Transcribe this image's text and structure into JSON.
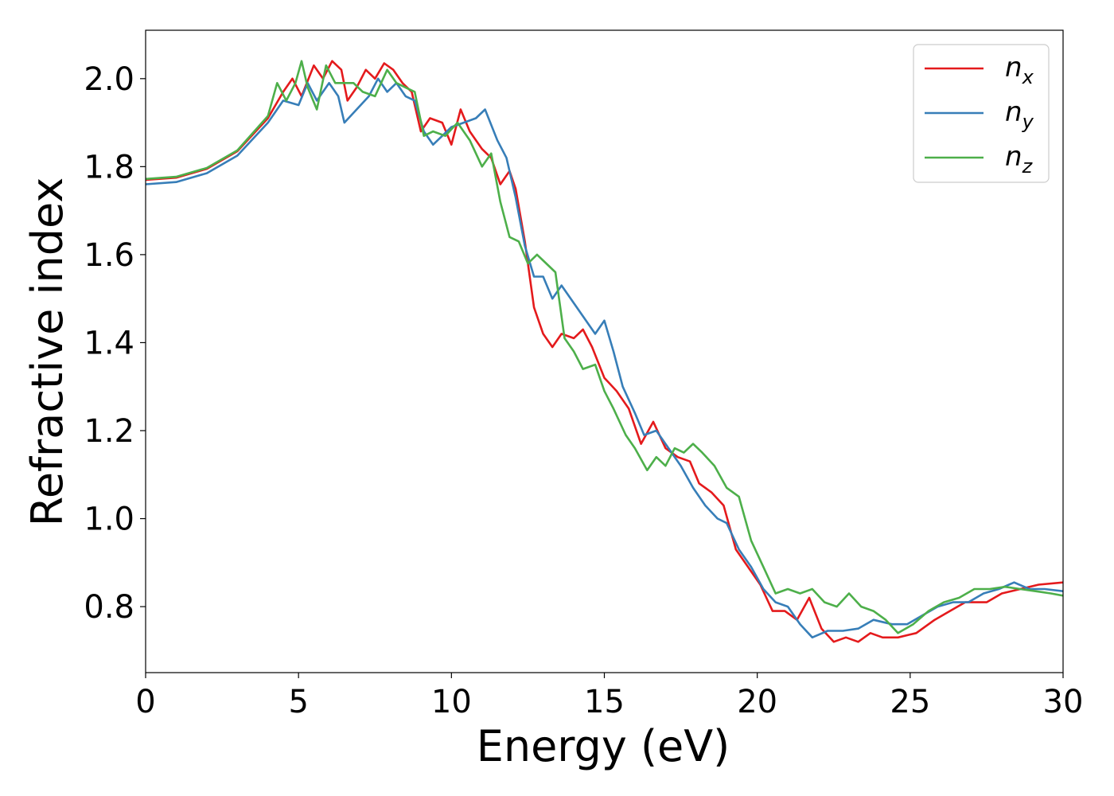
{
  "chart_data": {
    "type": "line",
    "title": "",
    "xlabel": "Energy (eV)",
    "ylabel": "Refractive index",
    "xlim": [
      0,
      30
    ],
    "ylim": [
      0.65,
      2.11
    ],
    "xticks": [
      0,
      5,
      10,
      15,
      20,
      25,
      30
    ],
    "yticks": [
      0.8,
      1.0,
      1.2,
      1.4,
      1.6,
      1.8,
      2.0
    ],
    "xtick_labels": [
      "0",
      "5",
      "10",
      "15",
      "20",
      "25",
      "30"
    ],
    "ytick_labels": [
      "0.8",
      "1.0",
      "1.2",
      "1.4",
      "1.6",
      "1.8",
      "2.0"
    ],
    "grid": false,
    "legend_position": "top-right",
    "series": [
      {
        "name": "n_x",
        "label_main": "n",
        "label_sub": "x",
        "color": "#e41a1c",
        "points": [
          [
            0,
            1.77
          ],
          [
            1,
            1.775
          ],
          [
            2,
            1.795
          ],
          [
            3,
            1.835
          ],
          [
            4,
            1.91
          ],
          [
            4.5,
            1.97
          ],
          [
            4.8,
            2.0
          ],
          [
            5.1,
            1.96
          ],
          [
            5.5,
            2.03
          ],
          [
            5.8,
            2.0
          ],
          [
            6.1,
            2.04
          ],
          [
            6.4,
            2.02
          ],
          [
            6.6,
            1.95
          ],
          [
            6.9,
            1.98
          ],
          [
            7.2,
            2.02
          ],
          [
            7.5,
            2.0
          ],
          [
            7.8,
            2.035
          ],
          [
            8.1,
            2.02
          ],
          [
            8.4,
            1.99
          ],
          [
            8.7,
            1.97
          ],
          [
            9.0,
            1.88
          ],
          [
            9.3,
            1.91
          ],
          [
            9.7,
            1.9
          ],
          [
            10.0,
            1.85
          ],
          [
            10.3,
            1.93
          ],
          [
            10.6,
            1.88
          ],
          [
            11.0,
            1.84
          ],
          [
            11.3,
            1.82
          ],
          [
            11.6,
            1.76
          ],
          [
            11.9,
            1.79
          ],
          [
            12.1,
            1.75
          ],
          [
            12.4,
            1.63
          ],
          [
            12.7,
            1.48
          ],
          [
            13.0,
            1.42
          ],
          [
            13.3,
            1.39
          ],
          [
            13.6,
            1.42
          ],
          [
            14.0,
            1.41
          ],
          [
            14.3,
            1.43
          ],
          [
            14.6,
            1.39
          ],
          [
            15.0,
            1.32
          ],
          [
            15.4,
            1.29
          ],
          [
            15.8,
            1.25
          ],
          [
            16.2,
            1.17
          ],
          [
            16.6,
            1.22
          ],
          [
            17.0,
            1.16
          ],
          [
            17.4,
            1.14
          ],
          [
            17.8,
            1.13
          ],
          [
            18.1,
            1.08
          ],
          [
            18.5,
            1.06
          ],
          [
            18.9,
            1.03
          ],
          [
            19.3,
            0.93
          ],
          [
            19.7,
            0.89
          ],
          [
            20.1,
            0.85
          ],
          [
            20.5,
            0.79
          ],
          [
            20.9,
            0.79
          ],
          [
            21.3,
            0.77
          ],
          [
            21.7,
            0.82
          ],
          [
            22.1,
            0.75
          ],
          [
            22.5,
            0.72
          ],
          [
            22.9,
            0.73
          ],
          [
            23.3,
            0.72
          ],
          [
            23.7,
            0.74
          ],
          [
            24.1,
            0.73
          ],
          [
            24.6,
            0.73
          ],
          [
            25.2,
            0.74
          ],
          [
            25.8,
            0.77
          ],
          [
            26.3,
            0.79
          ],
          [
            26.8,
            0.81
          ],
          [
            27.5,
            0.81
          ],
          [
            28.0,
            0.83
          ],
          [
            28.6,
            0.84
          ],
          [
            29.2,
            0.85
          ],
          [
            30.0,
            0.855
          ]
        ]
      },
      {
        "name": "n_y",
        "label_main": "n",
        "label_sub": "y",
        "color": "#377eb8",
        "points": [
          [
            0,
            1.76
          ],
          [
            1,
            1.765
          ],
          [
            2,
            1.785
          ],
          [
            3,
            1.825
          ],
          [
            4,
            1.9
          ],
          [
            4.5,
            1.95
          ],
          [
            5.0,
            1.94
          ],
          [
            5.3,
            1.99
          ],
          [
            5.6,
            1.95
          ],
          [
            6.0,
            1.99
          ],
          [
            6.3,
            1.96
          ],
          [
            6.5,
            1.9
          ],
          [
            6.9,
            1.93
          ],
          [
            7.3,
            1.96
          ],
          [
            7.6,
            2.0
          ],
          [
            7.9,
            1.97
          ],
          [
            8.2,
            1.99
          ],
          [
            8.5,
            1.96
          ],
          [
            8.8,
            1.95
          ],
          [
            9.1,
            1.88
          ],
          [
            9.4,
            1.85
          ],
          [
            9.7,
            1.87
          ],
          [
            10.0,
            1.89
          ],
          [
            10.4,
            1.9
          ],
          [
            10.8,
            1.91
          ],
          [
            11.1,
            1.93
          ],
          [
            11.5,
            1.86
          ],
          [
            11.8,
            1.82
          ],
          [
            12.1,
            1.73
          ],
          [
            12.4,
            1.62
          ],
          [
            12.7,
            1.55
          ],
          [
            13.0,
            1.55
          ],
          [
            13.3,
            1.5
          ],
          [
            13.6,
            1.53
          ],
          [
            14.0,
            1.49
          ],
          [
            14.3,
            1.46
          ],
          [
            14.7,
            1.42
          ],
          [
            15.0,
            1.45
          ],
          [
            15.3,
            1.38
          ],
          [
            15.6,
            1.3
          ],
          [
            16.0,
            1.24
          ],
          [
            16.3,
            1.19
          ],
          [
            16.7,
            1.2
          ],
          [
            17.1,
            1.16
          ],
          [
            17.5,
            1.12
          ],
          [
            17.9,
            1.07
          ],
          [
            18.3,
            1.03
          ],
          [
            18.7,
            1.0
          ],
          [
            19.0,
            0.99
          ],
          [
            19.4,
            0.93
          ],
          [
            19.8,
            0.89
          ],
          [
            20.2,
            0.84
          ],
          [
            20.6,
            0.81
          ],
          [
            21.0,
            0.8
          ],
          [
            21.4,
            0.76
          ],
          [
            21.8,
            0.73
          ],
          [
            22.3,
            0.745
          ],
          [
            22.8,
            0.745
          ],
          [
            23.3,
            0.75
          ],
          [
            23.8,
            0.77
          ],
          [
            24.4,
            0.76
          ],
          [
            24.9,
            0.76
          ],
          [
            25.4,
            0.78
          ],
          [
            25.9,
            0.8
          ],
          [
            26.4,
            0.81
          ],
          [
            26.9,
            0.81
          ],
          [
            27.4,
            0.83
          ],
          [
            27.9,
            0.84
          ],
          [
            28.4,
            0.855
          ],
          [
            28.9,
            0.84
          ],
          [
            29.4,
            0.84
          ],
          [
            30.0,
            0.835
          ]
        ]
      },
      {
        "name": "n_z",
        "label_main": "n",
        "label_sub": "z",
        "color": "#4daf4a",
        "points": [
          [
            0,
            1.772
          ],
          [
            1,
            1.777
          ],
          [
            2,
            1.797
          ],
          [
            3,
            1.837
          ],
          [
            4,
            1.915
          ],
          [
            4.3,
            1.99
          ],
          [
            4.6,
            1.95
          ],
          [
            4.9,
            1.99
          ],
          [
            5.1,
            2.04
          ],
          [
            5.3,
            1.98
          ],
          [
            5.6,
            1.93
          ],
          [
            5.9,
            2.03
          ],
          [
            6.2,
            1.99
          ],
          [
            6.5,
            1.99
          ],
          [
            6.8,
            1.99
          ],
          [
            7.1,
            1.97
          ],
          [
            7.5,
            1.96
          ],
          [
            7.9,
            2.02
          ],
          [
            8.2,
            1.99
          ],
          [
            8.5,
            1.98
          ],
          [
            8.8,
            1.97
          ],
          [
            9.1,
            1.87
          ],
          [
            9.4,
            1.88
          ],
          [
            9.8,
            1.87
          ],
          [
            10.2,
            1.9
          ],
          [
            10.6,
            1.86
          ],
          [
            11.0,
            1.8
          ],
          [
            11.3,
            1.83
          ],
          [
            11.6,
            1.72
          ],
          [
            11.9,
            1.64
          ],
          [
            12.2,
            1.63
          ],
          [
            12.5,
            1.58
          ],
          [
            12.8,
            1.6
          ],
          [
            13.1,
            1.58
          ],
          [
            13.4,
            1.56
          ],
          [
            13.7,
            1.41
          ],
          [
            14.0,
            1.38
          ],
          [
            14.3,
            1.34
          ],
          [
            14.7,
            1.35
          ],
          [
            15.0,
            1.29
          ],
          [
            15.3,
            1.25
          ],
          [
            15.7,
            1.19
          ],
          [
            16.0,
            1.16
          ],
          [
            16.4,
            1.11
          ],
          [
            16.7,
            1.14
          ],
          [
            17.0,
            1.12
          ],
          [
            17.3,
            1.16
          ],
          [
            17.6,
            1.15
          ],
          [
            17.9,
            1.17
          ],
          [
            18.2,
            1.15
          ],
          [
            18.6,
            1.12
          ],
          [
            19.0,
            1.07
          ],
          [
            19.4,
            1.05
          ],
          [
            19.8,
            0.95
          ],
          [
            20.2,
            0.89
          ],
          [
            20.6,
            0.83
          ],
          [
            21.0,
            0.84
          ],
          [
            21.4,
            0.83
          ],
          [
            21.8,
            0.84
          ],
          [
            22.2,
            0.81
          ],
          [
            22.6,
            0.8
          ],
          [
            23.0,
            0.83
          ],
          [
            23.4,
            0.8
          ],
          [
            23.8,
            0.79
          ],
          [
            24.2,
            0.77
          ],
          [
            24.6,
            0.74
          ],
          [
            25.1,
            0.76
          ],
          [
            25.6,
            0.79
          ],
          [
            26.1,
            0.81
          ],
          [
            26.6,
            0.82
          ],
          [
            27.1,
            0.84
          ],
          [
            27.6,
            0.84
          ],
          [
            28.1,
            0.845
          ],
          [
            28.6,
            0.84
          ],
          [
            29.1,
            0.835
          ],
          [
            29.6,
            0.83
          ],
          [
            30.0,
            0.825
          ]
        ]
      }
    ]
  }
}
